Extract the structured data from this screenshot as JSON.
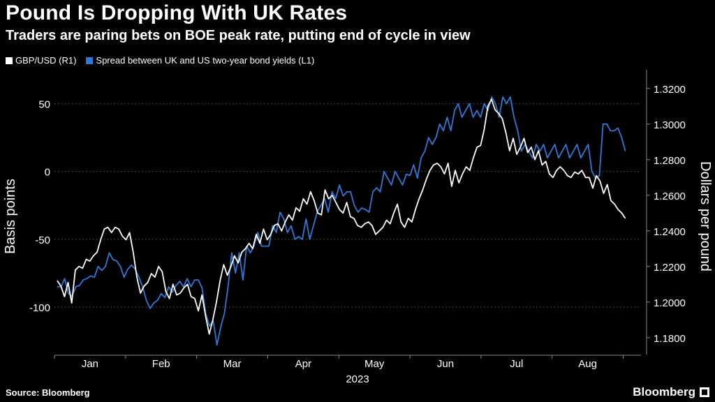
{
  "title": "Pound Is Dropping With UK Rates",
  "subtitle": "Traders are paring bets on BOE peak rate, putting end of cycle in view",
  "source": "Source: Bloomberg",
  "brand": "Bloomberg",
  "chart_data": {
    "type": "line",
    "xlabel": "2023",
    "months": [
      "Jan",
      "Feb",
      "Mar",
      "Apr",
      "May",
      "Jun",
      "Jul",
      "Aug"
    ],
    "left_axis": {
      "label": "Basis points",
      "range": [
        -135,
        75
      ],
      "ticks": [
        50,
        0,
        -50,
        -100
      ]
    },
    "right_axis": {
      "label": "Dollars per pound",
      "range": [
        1.1705,
        1.3305
      ],
      "ticks": [
        "1.3200",
        "1.3000",
        "1.2800",
        "1.2600",
        "1.2400",
        "1.2200",
        "1.2000",
        "1.1800"
      ]
    },
    "series": [
      {
        "name": "GBP/USD (R1)",
        "color": "#ffffff",
        "axis": "right",
        "values": [
          1.212,
          1.209,
          1.203,
          1.211,
          1.1995,
          1.218,
          1.22,
          1.219,
          1.224,
          1.223,
          1.226,
          1.228,
          1.235,
          1.241,
          1.242,
          1.239,
          1.242,
          1.241,
          1.237,
          1.235,
          1.239,
          1.228,
          1.214,
          1.205,
          1.209,
          1.211,
          1.216,
          1.214,
          1.22,
          1.217,
          1.206,
          1.202,
          1.21,
          1.204,
          1.205,
          1.208,
          1.21,
          1.203,
          1.202,
          1.195,
          1.204,
          1.192,
          1.182,
          1.19,
          1.2,
          1.212,
          1.221,
          1.215,
          1.22,
          1.226,
          1.222,
          1.228,
          1.23,
          1.233,
          1.23,
          1.238,
          1.233,
          1.241,
          1.235,
          1.238,
          1.243,
          1.244,
          1.24,
          1.245,
          1.249,
          1.246,
          1.253,
          1.251,
          1.258,
          1.255,
          1.262,
          1.257,
          1.25,
          1.249,
          1.263,
          1.258,
          1.26,
          1.256,
          1.252,
          1.25,
          1.256,
          1.248,
          1.247,
          1.243,
          1.242,
          1.244,
          1.245,
          1.243,
          1.238,
          1.24,
          1.242,
          1.246,
          1.244,
          1.25,
          1.255,
          1.245,
          1.242,
          1.247,
          1.245,
          1.252,
          1.258,
          1.263,
          1.269,
          1.274,
          1.277,
          1.278,
          1.276,
          1.272,
          1.278,
          1.265,
          1.274,
          1.267,
          1.272,
          1.276,
          1.274,
          1.281,
          1.287,
          1.288,
          1.297,
          1.31,
          1.314,
          1.308,
          1.306,
          1.303,
          1.295,
          1.285,
          1.292,
          1.283,
          1.287,
          1.292,
          1.284,
          1.287,
          1.28,
          1.285,
          1.277,
          1.279,
          1.272,
          1.27,
          1.274,
          1.276,
          1.274,
          1.271,
          1.27,
          1.273,
          1.272,
          1.274,
          1.27,
          1.27,
          1.264,
          1.271,
          1.268,
          1.261,
          1.266,
          1.257,
          1.255,
          1.252,
          1.25,
          1.247
        ]
      },
      {
        "name": "Spread between UK and US two-year bond yields (L1)",
        "color": "#2f78d8",
        "axis": "left",
        "values": [
          -85,
          -85,
          -79,
          -90,
          -92,
          -85,
          -84,
          -80,
          -79,
          -77,
          -78,
          -70,
          -73,
          -70,
          -60,
          -65,
          -66,
          -70,
          -78,
          -72,
          -69,
          -72,
          -78,
          -85,
          -95,
          -101,
          -97,
          -95,
          -90,
          -93,
          -85,
          -89,
          -84,
          -81,
          -85,
          -79,
          -85,
          -80,
          -80,
          -86,
          -105,
          -114,
          -110,
          -128,
          -115,
          -105,
          -85,
          -60,
          -75,
          -60,
          -80,
          -55,
          -60,
          -55,
          -45,
          -55,
          -55,
          -55,
          -40,
          -45,
          -30,
          -35,
          -45,
          -40,
          -50,
          -48,
          -50,
          -35,
          -50,
          -40,
          -30,
          -25,
          -20,
          -30,
          -15,
          -20,
          -10,
          -18,
          -15,
          -15,
          -25,
          -30,
          -27,
          -28,
          -30,
          -15,
          -12,
          -15,
          0,
          -5,
          -10,
          0,
          -5,
          -10,
          -2,
          -3,
          5,
          -5,
          10,
          15,
          25,
          20,
          25,
          35,
          30,
          40,
          30,
          45,
          50,
          40,
          45,
          50,
          40,
          45,
          40,
          50,
          45,
          55,
          50,
          40,
          55,
          50,
          55,
          40,
          30,
          15,
          20,
          15,
          10,
          20,
          15,
          20,
          10,
          15,
          20,
          10,
          15,
          20,
          10,
          15,
          20,
          10,
          15,
          20,
          0,
          -5,
          -3,
          35,
          35,
          30,
          30,
          32,
          25,
          15
        ]
      }
    ]
  }
}
